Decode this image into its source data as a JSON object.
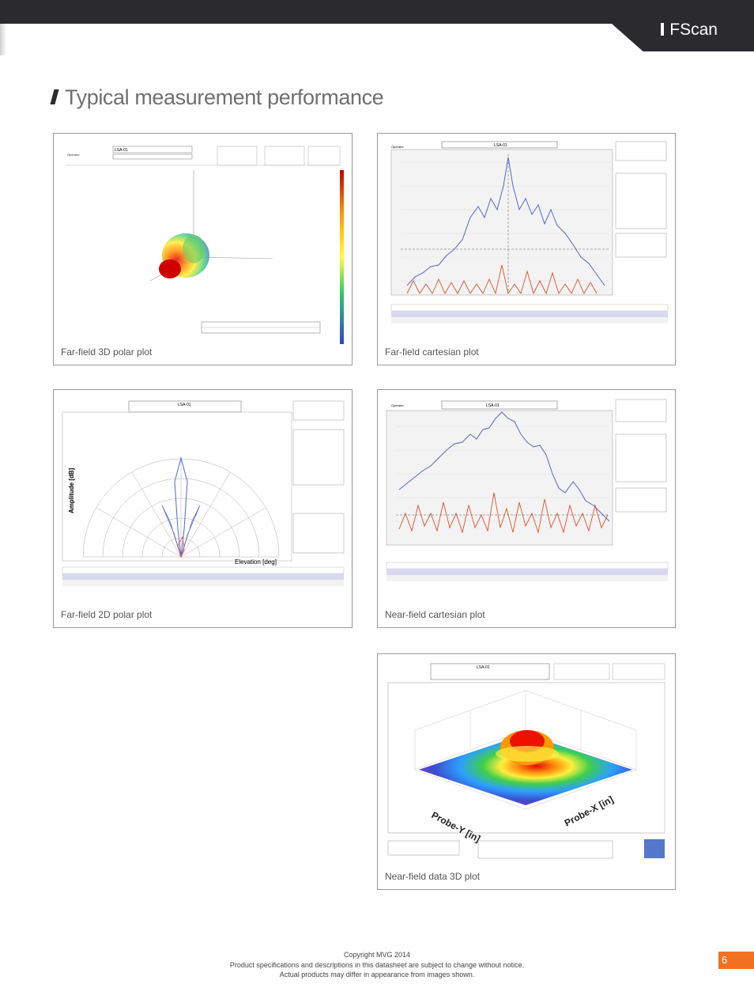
{
  "header": {
    "brand": "FScan"
  },
  "section_title": "Typical measurement performance",
  "panels": [
    {
      "caption": "Far-field 3D polar plot",
      "label": "LSA-01",
      "operator": "Operator"
    },
    {
      "caption": "Far-field cartesian plot",
      "label": "LSA-01",
      "operator": "Operator"
    },
    {
      "caption": "Far-field 2D polar plot",
      "label": "LSA-01",
      "xlabel": "Elevation [deg]",
      "ylabel": "Amplitude [dB]"
    },
    {
      "caption": "Near-field cartesian plot",
      "label": "LSA-01",
      "operator": "Operator"
    },
    {
      "caption": "Near-field data 3D plot",
      "label": "LSA-01",
      "xlabel": "Probe-X [in]",
      "ylabel": "Probe-Y [in]"
    }
  ],
  "footer": {
    "line1": "Copyright MVG 2014",
    "line2": "Product specifications and descriptions in this datasheet are subject to change without notice.",
    "line3": "Actual products may differ in appearance from images shown."
  },
  "page_number": "6"
}
